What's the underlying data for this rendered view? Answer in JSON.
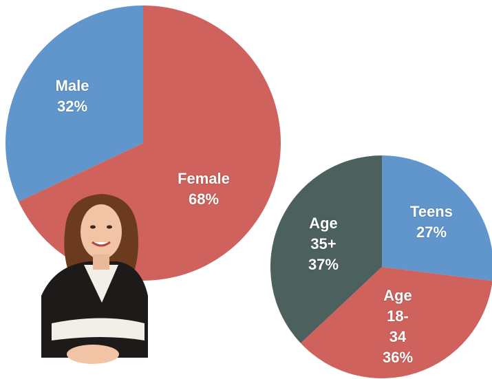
{
  "chart_data": [
    {
      "type": "pie",
      "categories": [
        "Male",
        "Female"
      ],
      "values": [
        32,
        68
      ],
      "value_labels": [
        "32%",
        "68%"
      ],
      "colors": [
        "#6096cc",
        "#cf625c"
      ]
    },
    {
      "type": "pie",
      "categories": [
        "Teens",
        "Age 18-34",
        "Age 35+"
      ],
      "values": [
        27,
        36,
        37
      ],
      "value_labels": [
        "27%",
        "36%",
        "37%"
      ],
      "colors": [
        "#6096cc",
        "#cf625c",
        "#4c615d"
      ]
    }
  ]
}
